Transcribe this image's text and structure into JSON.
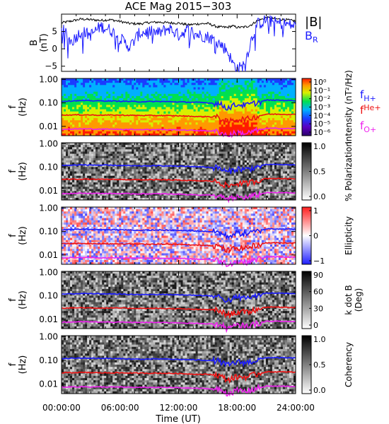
{
  "title": "ACE Mag 2015−303",
  "x_axis": {
    "label": "Time (UT)",
    "ticks": [
      "00:00:00",
      "06:00:00",
      "12:00:00",
      "18:00:00",
      "24:00:00"
    ]
  },
  "colors": {
    "H": "#1a1aff",
    "He": "#ee1111",
    "O": "#ee22ee",
    "B": "#000000"
  },
  "chart_data": [
    {
      "type": "line",
      "panel": "field",
      "ylabel_top": "B",
      "ylabel_bottom": "(nT)",
      "ylim": [
        -6.5,
        10
      ],
      "y_ticks": [
        "5",
        "0",
        "−5"
      ],
      "y_tick_values": [
        5,
        0,
        -5
      ],
      "legend_B": "|B|",
      "legend_BR": "B",
      "legend_BR_sub": "R",
      "x_hours": [
        0,
        1,
        2,
        3,
        4,
        5,
        6,
        7,
        8,
        9,
        10,
        11,
        12,
        13,
        14,
        15,
        16,
        17,
        17.5,
        18,
        18.5,
        19,
        19.5,
        20,
        21,
        22,
        23,
        24
      ],
      "series": [
        {
          "key": "B",
          "values": [
            7.5,
            8,
            8.6,
            8.4,
            8.2,
            8.4,
            7.9,
            7.3,
            7.2,
            7.6,
            7.7,
            7.5,
            7.4,
            6.9,
            7.2,
            7.3,
            6.3,
            6.2,
            6.6,
            6.2,
            6.2,
            6.4,
            7.0,
            8.0,
            9.0,
            8.6,
            8.4,
            8.0
          ]
        },
        {
          "key": "BR",
          "values": [
            6.0,
            2.0,
            5.0,
            4.0,
            6.5,
            5.5,
            3.0,
            0.5,
            4.5,
            5.0,
            4.5,
            6.0,
            4.0,
            5.5,
            4.0,
            3.5,
            2.0,
            -0.5,
            -4.0,
            -5.5,
            -5.5,
            -2.0,
            3.0,
            7.0,
            8.3,
            7.5,
            7.2,
            6.5
          ]
        }
      ]
    },
    {
      "type": "heatmap",
      "panel": "intensity",
      "ylabel_top": "f",
      "ylabel_bottom": "(Hz)",
      "colorbar_label": "Intensity (nT²/Hz)",
      "colorbar_ticks": [
        "10⁰",
        "10⁻¹",
        "10⁻²",
        "10⁻³",
        "10⁻⁴",
        "10⁻⁵",
        "10⁻⁶"
      ],
      "legend": [
        {
          "key": "H",
          "label": "f",
          "sub": "H+"
        },
        {
          "key": "He",
          "label": "f",
          "sub": "He+"
        },
        {
          "key": "O",
          "label": "f",
          "sub": "O+"
        }
      ]
    },
    {
      "type": "heatmap",
      "panel": "polarization",
      "ylabel_top": "f",
      "ylabel_bottom": "(Hz)",
      "colorbar_label": "% Polarization",
      "colorbar_ticks": [
        "1.0",
        "0.5",
        "0.0"
      ]
    },
    {
      "type": "heatmap",
      "panel": "ellipticity",
      "ylabel_top": "f",
      "ylabel_bottom": "(Hz)",
      "colorbar_label": "Ellipticity",
      "colorbar_ticks": [
        "1",
        "0",
        "−1"
      ]
    },
    {
      "type": "heatmap",
      "panel": "kdotb",
      "ylabel_top": "f",
      "ylabel_bottom": "(Hz)",
      "colorbar_label": "k dot B",
      "colorbar_label2": "(Deg)",
      "colorbar_ticks": [
        "90",
        "60",
        "30",
        "0"
      ]
    },
    {
      "type": "heatmap",
      "panel": "coherency",
      "ylabel_top": "f",
      "ylabel_bottom": "(Hz)",
      "colorbar_label": "Coherency",
      "colorbar_ticks": [
        "1.0",
        "0.5",
        "0.0"
      ]
    }
  ],
  "frequency_axis": {
    "ylim_hz": [
      0.004,
      1.1
    ],
    "ticks": [
      "1.00",
      "0.10",
      "0.01"
    ],
    "tick_values": [
      1.0,
      0.1,
      0.01
    ]
  },
  "gyrofrequency_lines": {
    "x_hours": [
      0,
      2,
      4,
      6,
      8,
      10,
      12,
      14,
      15,
      16,
      17,
      18,
      19,
      20,
      21,
      22,
      24
    ],
    "H": [
      0.118,
      0.125,
      0.122,
      0.118,
      0.112,
      0.115,
      0.11,
      0.105,
      0.1,
      0.095,
      0.06,
      0.085,
      0.08,
      0.1,
      0.13,
      0.13,
      0.125
    ],
    "He": [
      0.03,
      0.031,
      0.03,
      0.03,
      0.029,
      0.029,
      0.028,
      0.026,
      0.026,
      0.024,
      0.015,
      0.02,
      0.02,
      0.026,
      0.033,
      0.033,
      0.032
    ],
    "O": [
      0.0075,
      0.0078,
      0.0076,
      0.0075,
      0.0073,
      0.0073,
      0.0071,
      0.0066,
      0.0065,
      0.006,
      0.004,
      0.0053,
      0.005,
      0.0065,
      0.0082,
      0.0082,
      0.008
    ]
  }
}
